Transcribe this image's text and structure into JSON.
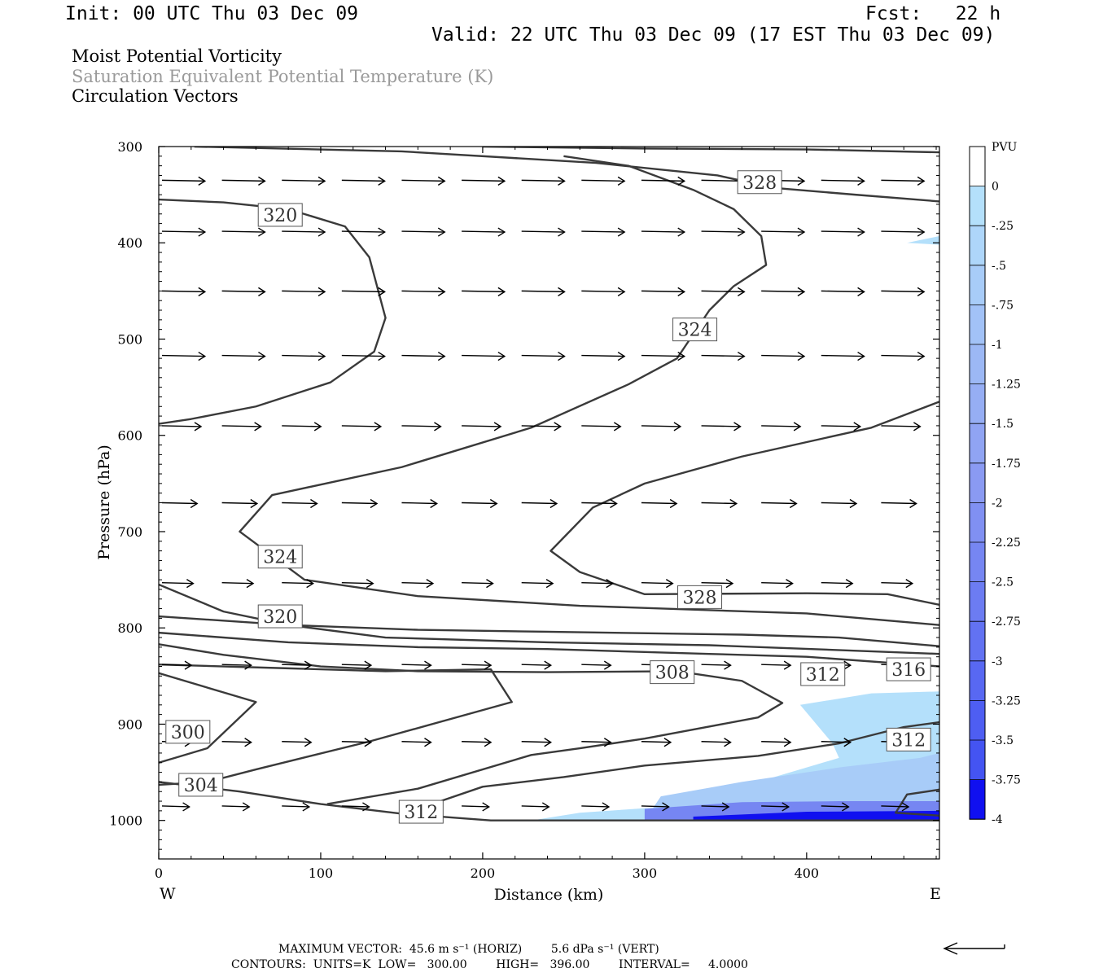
{
  "header": {
    "init": "Init: 00 UTC Thu 03 Dec 09",
    "fcst": "Fcst:   22 h",
    "valid": "Valid: 22 UTC Thu 03 Dec 09 (17 EST Thu 03 Dec 09)",
    "field1": "Moist Potential Vorticity",
    "field2": "Saturation Equivalent Potential Temperature (K)",
    "field3": "Circulation Vectors"
  },
  "colors": {
    "field2_text": "#9a9a9a",
    "contour": "#3a3a3a",
    "shade_light": "#b4e0fb",
    "shade_mid": "#9fb8f4",
    "shade_dark": "#4a4af2",
    "shade_deep": "#1414f0"
  },
  "chart_data": {
    "type": "cross-section",
    "xlabel": "Distance (km)",
    "ylabel": "Pressure (hPa)",
    "xlim": [
      0,
      482
    ],
    "ylim": [
      1040,
      300
    ],
    "x_ticks": [
      0,
      100,
      200,
      300,
      400
    ],
    "y_ticks": [
      300,
      400,
      500,
      600,
      700,
      800,
      900,
      1000
    ],
    "x_end_labels": {
      "west": "W",
      "east": "E"
    },
    "colorbar": {
      "unit": "PVU",
      "levels": [
        0,
        -0.25,
        -0.5,
        -0.75,
        -1,
        -1.25,
        -1.5,
        -1.75,
        -2,
        -2.25,
        -2.5,
        -2.75,
        -3,
        -3.25,
        -3.5,
        -3.75,
        -4
      ],
      "labels": [
        "0",
        "-.25",
        "-.5",
        "-.75",
        "-1",
        "-1.25",
        "-1.5",
        "-1.75",
        "-2",
        "-2.25",
        "-2.5",
        "-2.75",
        "-3",
        "-3.25",
        "-3.5",
        "-3.75",
        "-4"
      ],
      "colors": [
        "#ffffff",
        "#b4e0fb",
        "#aed6fa",
        "#a8ccf8",
        "#a2c2f7",
        "#9cb8f5",
        "#96aef4",
        "#90a4f3",
        "#8a9af2",
        "#8090f2",
        "#7686f2",
        "#6c7cf2",
        "#6272f2",
        "#5868f2",
        "#4e5ef2",
        "#4454f2",
        "#1010f0"
      ]
    },
    "contour_labels": [
      {
        "text": "328",
        "x": 371,
        "p": 337
      },
      {
        "text": "320",
        "x": 75,
        "p": 371
      },
      {
        "text": "324",
        "x": 331,
        "p": 490
      },
      {
        "text": "324",
        "x": 75,
        "p": 726
      },
      {
        "text": "328",
        "x": 334,
        "p": 768
      },
      {
        "text": "320",
        "x": 75,
        "p": 788
      },
      {
        "text": "308",
        "x": 317,
        "p": 846
      },
      {
        "text": "312",
        "x": 410,
        "p": 848
      },
      {
        "text": "316",
        "x": 463,
        "p": 843
      },
      {
        "text": "300",
        "x": 18,
        "p": 908
      },
      {
        "text": "312",
        "x": 463,
        "p": 916
      },
      {
        "text": "304",
        "x": 26,
        "p": 963
      },
      {
        "text": "312",
        "x": 162,
        "p": 991
      }
    ],
    "contours": [
      {
        "level": 328,
        "points": [
          [
            22,
            300
          ],
          [
            150,
            305
          ],
          [
            270,
            317
          ],
          [
            345,
            330
          ],
          [
            380,
            343
          ],
          [
            430,
            350
          ],
          [
            482,
            357
          ]
        ]
      },
      {
        "level": 328,
        "points": [
          [
            200,
            300
          ],
          [
            300,
            302
          ],
          [
            400,
            303
          ],
          [
            482,
            306
          ]
        ]
      },
      {
        "level": 320,
        "points": [
          [
            0,
            355
          ],
          [
            40,
            358
          ],
          [
            80,
            365
          ],
          [
            115,
            383
          ],
          [
            130,
            415
          ],
          [
            140,
            478
          ],
          [
            133,
            513
          ],
          [
            106,
            545
          ],
          [
            60,
            570
          ],
          [
            20,
            583
          ],
          [
            0,
            588
          ]
        ]
      },
      {
        "level": 324,
        "points": [
          [
            0,
            755
          ],
          [
            40,
            783
          ],
          [
            80,
            797
          ],
          [
            140,
            810
          ],
          [
            240,
            815
          ],
          [
            340,
            818
          ],
          [
            482,
            827
          ]
        ]
      },
      {
        "level": 324,
        "points": [
          [
            250,
            310
          ],
          [
            290,
            320
          ],
          [
            330,
            345
          ],
          [
            355,
            365
          ],
          [
            372,
            393
          ],
          [
            375,
            423
          ],
          [
            355,
            445
          ],
          [
            340,
            470
          ],
          [
            320,
            520
          ],
          [
            290,
            547
          ],
          [
            230,
            592
          ],
          [
            150,
            633
          ],
          [
            70,
            662
          ],
          [
            50,
            700
          ],
          [
            90,
            750
          ],
          [
            160,
            767
          ],
          [
            260,
            777
          ],
          [
            400,
            785
          ],
          [
            482,
            797
          ]
        ]
      },
      {
        "level": 328,
        "points": [
          [
            482,
            565
          ],
          [
            440,
            592
          ],
          [
            360,
            622
          ],
          [
            300,
            650
          ],
          [
            268,
            675
          ],
          [
            242,
            720
          ],
          [
            260,
            742
          ],
          [
            300,
            765
          ],
          [
            400,
            764
          ],
          [
            450,
            765
          ],
          [
            482,
            776
          ]
        ]
      },
      {
        "level": 320,
        "points": [
          [
            0,
            788
          ],
          [
            80,
            797
          ],
          [
            160,
            802
          ],
          [
            240,
            804
          ],
          [
            360,
            807
          ],
          [
            420,
            810
          ],
          [
            482,
            819
          ]
        ]
      },
      {
        "level": 316,
        "points": [
          [
            0,
            805
          ],
          [
            80,
            815
          ],
          [
            160,
            820
          ],
          [
            240,
            822
          ],
          [
            340,
            827
          ],
          [
            400,
            830
          ],
          [
            482,
            840
          ]
        ]
      },
      {
        "level": 308,
        "points": [
          [
            0,
            817
          ],
          [
            40,
            828
          ],
          [
            100,
            840
          ],
          [
            160,
            845
          ],
          [
            240,
            846
          ],
          [
            320,
            845
          ],
          [
            360,
            855
          ],
          [
            385,
            878
          ],
          [
            370,
            893
          ],
          [
            300,
            915
          ],
          [
            260,
            925
          ],
          [
            230,
            932
          ],
          [
            160,
            967
          ],
          [
            104,
            983
          ]
        ]
      },
      {
        "level": 312,
        "points": [
          [
            0,
            847
          ],
          [
            60,
            877
          ],
          [
            30,
            925
          ],
          [
            10,
            935
          ],
          [
            0,
            940
          ]
        ]
      },
      {
        "level": 312,
        "points": [
          [
            482,
            898
          ],
          [
            460,
            903
          ],
          [
            420,
            920
          ],
          [
            370,
            933
          ],
          [
            300,
            943
          ],
          [
            250,
            955
          ],
          [
            200,
            965
          ],
          [
            160,
            988
          ]
        ]
      },
      {
        "level": 304,
        "points": [
          [
            0,
            838
          ],
          [
            80,
            842
          ],
          [
            140,
            845
          ],
          [
            205,
            843
          ],
          [
            218,
            877
          ],
          [
            130,
            918
          ],
          [
            60,
            947
          ],
          [
            30,
            960
          ],
          [
            0,
            963
          ]
        ]
      },
      {
        "level": 300,
        "points": [
          [
            0,
            960
          ],
          [
            50,
            970
          ],
          [
            100,
            983
          ],
          [
            150,
            993
          ],
          [
            205,
            1000
          ],
          [
            300,
            1000
          ],
          [
            400,
            1000
          ],
          [
            482,
            1000
          ]
        ]
      },
      {
        "level": 316,
        "points": [
          [
            482,
            968
          ],
          [
            462,
            973
          ],
          [
            455,
            992
          ],
          [
            482,
            995
          ]
        ]
      }
    ],
    "shading": [
      {
        "value": -0.25,
        "points": [
          [
            396,
            880
          ],
          [
            440,
            868
          ],
          [
            482,
            866
          ],
          [
            482,
            1000
          ],
          [
            230,
            1000
          ],
          [
            260,
            992
          ],
          [
            320,
            985
          ],
          [
            420,
            935
          ],
          [
            416,
            920
          ]
        ]
      },
      {
        "value": -0.25,
        "points": [
          [
            462,
            400
          ],
          [
            482,
            393
          ],
          [
            482,
            402
          ]
        ]
      },
      {
        "value": -0.75,
        "points": [
          [
            310,
            975
          ],
          [
            360,
            960
          ],
          [
            420,
            945
          ],
          [
            470,
            935
          ],
          [
            482,
            930
          ],
          [
            482,
            1000
          ],
          [
            300,
            1000
          ]
        ]
      },
      {
        "value": -2.5,
        "points": [
          [
            300,
            988
          ],
          [
            360,
            981
          ],
          [
            420,
            980
          ],
          [
            482,
            980
          ],
          [
            482,
            1000
          ],
          [
            300,
            1000
          ]
        ]
      },
      {
        "value": -4,
        "points": [
          [
            330,
            996
          ],
          [
            400,
            991
          ],
          [
            482,
            990
          ],
          [
            482,
            1000
          ],
          [
            330,
            1000
          ]
        ]
      }
    ],
    "vectors": [
      {
        "p": 335,
        "x": [
          0,
          37,
          74,
          111,
          148,
          185,
          222,
          259,
          296,
          333,
          370,
          407,
          444
        ],
        "len": 22
      },
      {
        "p": 388,
        "x": [
          0,
          37,
          74,
          111,
          148,
          185,
          222,
          259,
          296,
          333,
          370,
          407,
          444
        ],
        "len": 22
      },
      {
        "p": 450,
        "x": [
          0,
          37,
          74,
          111,
          148,
          185,
          222,
          259,
          296,
          333,
          370,
          407,
          444
        ],
        "len": 22
      },
      {
        "p": 517,
        "x": [
          0,
          37,
          74,
          111,
          148,
          185,
          222,
          259,
          296,
          333,
          370,
          407,
          444
        ],
        "len": 22
      },
      {
        "p": 590,
        "x": [
          0,
          37,
          74,
          111,
          148,
          185,
          222,
          259,
          296,
          333,
          370,
          407,
          444
        ],
        "len": 20
      },
      {
        "p": 670,
        "x": [
          0,
          37,
          74,
          111,
          148,
          185,
          222,
          259,
          296,
          333,
          370,
          407,
          444
        ],
        "len": 18
      },
      {
        "p": 753,
        "x": [
          0,
          37,
          74,
          111,
          148,
          185,
          222,
          259,
          296,
          333,
          370,
          407,
          444
        ],
        "len": 16
      },
      {
        "p": 838,
        "x": [
          0,
          37,
          74,
          111,
          148,
          185,
          222,
          259,
          296,
          333,
          370,
          407,
          444
        ],
        "len": 15
      },
      {
        "p": 918,
        "x": [
          0,
          37,
          74,
          111,
          148,
          185,
          222,
          259,
          296,
          333,
          370,
          407,
          444
        ],
        "len": 15
      },
      {
        "p": 985,
        "x": [
          0,
          37,
          74,
          111,
          148,
          185,
          222,
          259,
          296,
          333,
          370,
          407,
          444
        ],
        "len": 14
      }
    ]
  },
  "footer": {
    "max_vector": "MAXIMUM VECTOR:  45.6 m s⁻¹ (HORIZ)        5.6 dPa s⁻¹ (VERT)",
    "contours": "CONTOURS:  UNITS=K  LOW=   300.00        HIGH=   396.00        INTERVAL=     4.0000"
  }
}
